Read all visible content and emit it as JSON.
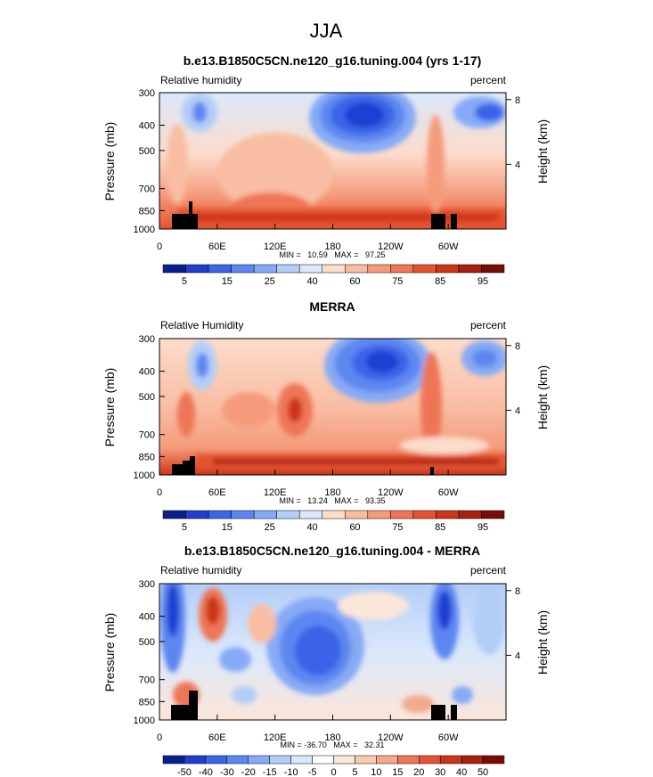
{
  "figure_title": "JJA",
  "colors": {
    "rh_scale": [
      "#0a1f8f",
      "#1f3fd1",
      "#3b64e8",
      "#5d87f0",
      "#86aaf5",
      "#b2cdf8",
      "#dbe8fb",
      "#fcdccb",
      "#f9bda3",
      "#f59b7b",
      "#ee7656",
      "#e5522f",
      "#cd3518",
      "#a91f10",
      "#7a0c06"
    ],
    "diff_scale": [
      "#0a1f8f",
      "#1f3fd1",
      "#3b64e8",
      "#5d87f0",
      "#86aaf5",
      "#b2cdf8",
      "#dbe8fb",
      "#ffffff",
      "#fbe6da",
      "#f8caae",
      "#f4a98a",
      "#ee7656",
      "#e5522f",
      "#cd3518",
      "#a91f10",
      "#7a0c06"
    ]
  },
  "chart_data": [
    {
      "type": "heatmap",
      "title": "b.e13.B1850C5CN.ne120_g16.tuning.004 (yrs 1-17)",
      "left_label": "Relative humidity",
      "right_label": "percent",
      "ylabel": "Pressure (mb)",
      "y2label": "Height (km)",
      "x_ticks": [
        "0",
        "60E",
        "120E",
        "180",
        "120W",
        "60W"
      ],
      "y_ticks": [
        "300",
        "400",
        "500",
        "700",
        "850",
        "1000"
      ],
      "y2_ticks": [
        "8",
        "4"
      ],
      "stats": "MIN =   10.59   MAX =   97.25",
      "colorbar_labels": [
        "5",
        "15",
        "25",
        "40",
        "60",
        "75",
        "85",
        "95"
      ],
      "xlim": [
        0,
        360
      ],
      "ylim": [
        1000,
        300
      ]
    },
    {
      "type": "heatmap",
      "title": "MERRA",
      "left_label": "Relative Humidity",
      "right_label": "percent",
      "ylabel": "Pressure (mb)",
      "y2label": "Height (km)",
      "x_ticks": [
        "0",
        "60E",
        "120E",
        "180",
        "120W",
        "60W"
      ],
      "y_ticks": [
        "300",
        "400",
        "500",
        "700",
        "850",
        "1000"
      ],
      "y2_ticks": [
        "8",
        "4"
      ],
      "stats": "MIN =   13.24   MAX =   93.35",
      "colorbar_labels": [
        "5",
        "15",
        "25",
        "40",
        "60",
        "75",
        "85",
        "95"
      ],
      "xlim": [
        0,
        360
      ],
      "ylim": [
        1000,
        300
      ]
    },
    {
      "type": "heatmap",
      "title": "b.e13.B1850C5CN.ne120_g16.tuning.004 - MERRA",
      "left_label": "Relative humidity",
      "right_label": "percent",
      "ylabel": "Pressure (mb)",
      "y2label": "Height (km)",
      "x_ticks": [
        "0",
        "60E",
        "120E",
        "180",
        "120W",
        "60W"
      ],
      "y_ticks": [
        "300",
        "400",
        "500",
        "700",
        "850",
        "1000"
      ],
      "y2_ticks": [
        "8",
        "4"
      ],
      "stats": "MIN = -36.70   MAX =   32.31",
      "colorbar_labels": [
        "-50",
        "-40",
        "-30",
        "-20",
        "-15",
        "-10",
        "-5",
        "0",
        "5",
        "10",
        "15",
        "20",
        "30",
        "40",
        "50"
      ],
      "xlim": [
        0,
        360
      ],
      "ylim": [
        1000,
        300
      ]
    }
  ]
}
